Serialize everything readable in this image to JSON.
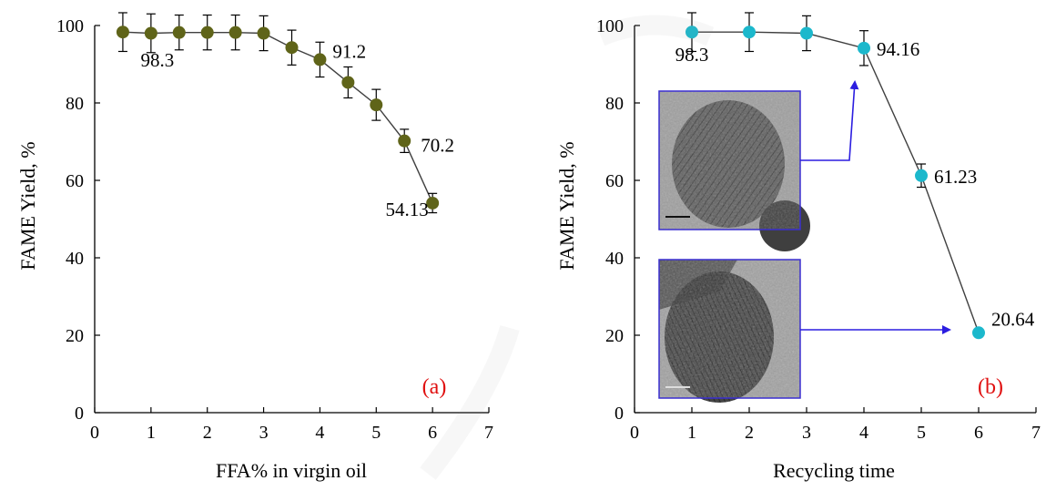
{
  "chart_data": [
    {
      "type": "line",
      "panel_label": "(a)",
      "xlabel": "FFA% in virgin oil",
      "ylabel": "FAME Yield, %",
      "xlim": [
        0,
        7
      ],
      "ylim": [
        0,
        100
      ],
      "x_ticks": [
        0,
        1,
        2,
        3,
        4,
        5,
        6,
        7
      ],
      "y_ticks": [
        0,
        20,
        40,
        60,
        80,
        100
      ],
      "marker_color": "#5f6419",
      "line_color": "#404040",
      "grid": false,
      "series": [
        {
          "x": [
            0.5,
            1,
            1.5,
            2,
            2.5,
            3,
            3.5,
            4,
            4.5,
            5,
            5.5,
            6
          ],
          "y": [
            98.3,
            98.0,
            98.2,
            98.2,
            98.2,
            98.0,
            94.3,
            91.2,
            85.3,
            79.5,
            70.2,
            54.13
          ],
          "error": [
            5.0,
            5.0,
            4.5,
            4.5,
            4.5,
            4.5,
            4.5,
            4.5,
            4.0,
            4.0,
            3.0,
            2.5
          ]
        }
      ],
      "data_labels": [
        {
          "text": "98.3",
          "x": 0.5,
          "y": 98.3
        },
        {
          "text": "91.2",
          "x": 4,
          "y": 91.2
        },
        {
          "text": "70.2",
          "x": 5.5,
          "y": 70.2
        },
        {
          "text": "54.13",
          "x": 6,
          "y": 54.13
        }
      ]
    },
    {
      "type": "line",
      "panel_label": "(b)",
      "xlabel": "Recycling time",
      "ylabel": "FAME Yield, %",
      "xlim": [
        0,
        7
      ],
      "ylim": [
        0,
        100
      ],
      "x_ticks": [
        0,
        1,
        2,
        3,
        4,
        5,
        6,
        7
      ],
      "y_ticks": [
        0,
        20,
        40,
        60,
        80,
        100
      ],
      "marker_color": "#1cb8cc",
      "line_color": "#404040",
      "grid": false,
      "series": [
        {
          "x": [
            1,
            2,
            3,
            4,
            5,
            6
          ],
          "y": [
            98.3,
            98.3,
            98.0,
            94.16,
            61.23,
            20.64
          ],
          "error": [
            5.0,
            5.0,
            4.5,
            4.5,
            3.0,
            0
          ]
        }
      ],
      "data_labels": [
        {
          "text": "98.3",
          "x": 1,
          "y": 98.3
        },
        {
          "text": "94.16",
          "x": 4,
          "y": 94.16
        },
        {
          "text": "61.23",
          "x": 5,
          "y": 61.23
        },
        {
          "text": "20.64",
          "x": 6,
          "y": 20.64
        }
      ],
      "insets": [
        {
          "name": "tem-inset-fresh",
          "points_to_x": 4
        },
        {
          "name": "tem-inset-reused",
          "points_to_x": 6
        }
      ],
      "arrow_color": "#2b1de0",
      "inset_border_color": "#3a2fd0"
    }
  ]
}
